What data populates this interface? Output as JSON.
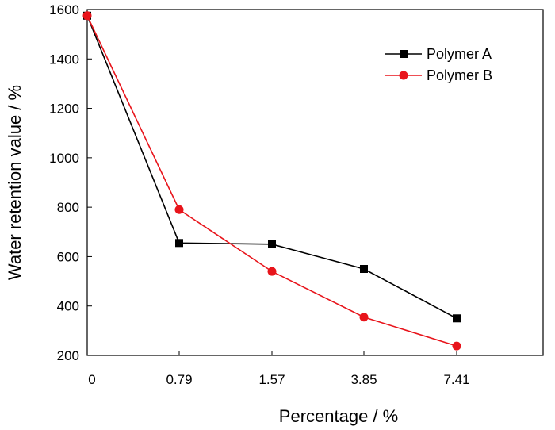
{
  "chart_data": {
    "type": "line",
    "categories": [
      "0",
      "0.79",
      "1.57",
      "3.85",
      "7.41"
    ],
    "xlabel": "Percentage / %",
    "ylabel": "Water retention value / %",
    "ylim": [
      200,
      1600
    ],
    "yticks": [
      200,
      400,
      600,
      800,
      1000,
      1200,
      1400,
      1600
    ],
    "grid": false,
    "legend_position": "top-right",
    "series": [
      {
        "name": "Polymer A",
        "color": "#000000",
        "marker": "square",
        "values": [
          1575,
          655,
          650,
          550,
          350
        ]
      },
      {
        "name": "Polymer B",
        "color": "#e8141b",
        "marker": "circle",
        "values": [
          1575,
          790,
          540,
          355,
          238
        ]
      }
    ]
  }
}
